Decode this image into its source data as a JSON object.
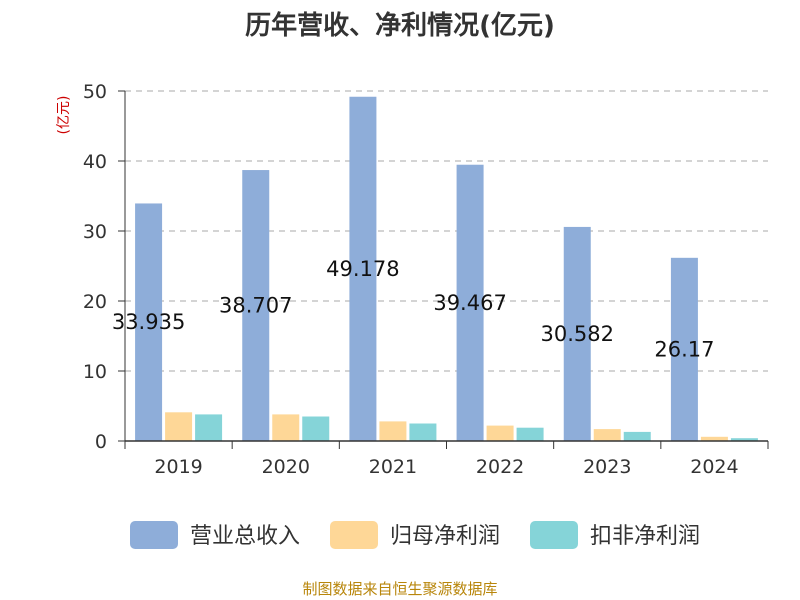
{
  "chart_data": {
    "type": "bar",
    "title": "历年营收、净利情况(亿元)",
    "ylabel": "(亿元)",
    "categories": [
      "2019",
      "2020",
      "2021",
      "2022",
      "2023",
      "2024"
    ],
    "series": [
      {
        "name": "营业总收入",
        "values": [
          33.935,
          38.707,
          49.178,
          39.467,
          30.582,
          26.17
        ],
        "color": "#8eadd9"
      },
      {
        "name": "归母净利润",
        "values": [
          4.1,
          3.8,
          2.8,
          2.2,
          1.7,
          0.6
        ],
        "color": "#fed797"
      },
      {
        "name": "扣非净利润",
        "values": [
          3.8,
          3.5,
          2.5,
          1.9,
          1.3,
          0.4
        ],
        "color": "#85d4d8"
      }
    ],
    "data_labels": [
      "33.935",
      "38.707",
      "49.178",
      "39.467",
      "30.582",
      "26.17"
    ],
    "ylim": [
      0,
      50
    ],
    "yticks": [
      0,
      10,
      20,
      30,
      40,
      50
    ],
    "grid": true,
    "legend_position": "bottom"
  },
  "footer": {
    "source": "制图数据来自恒生聚源数据库"
  }
}
